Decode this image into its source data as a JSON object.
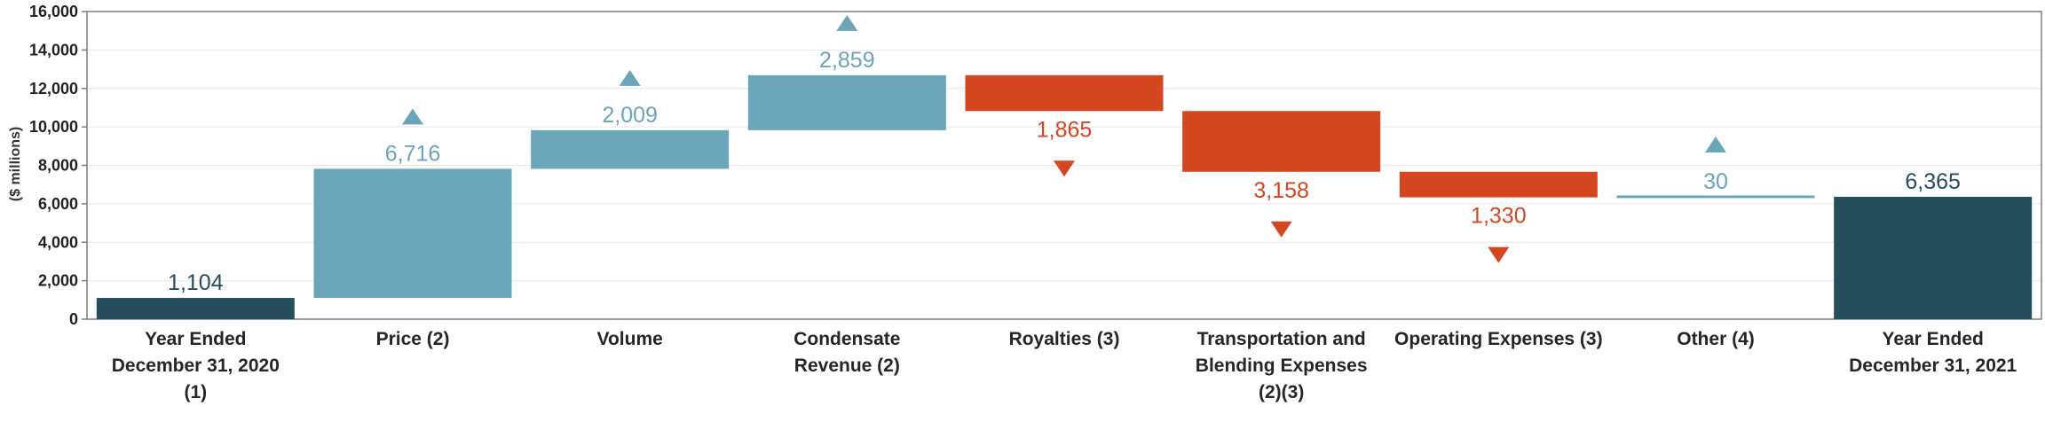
{
  "colors": {
    "total": "#264d5c",
    "increase": "#6aa5ba",
    "decrease": "#d3461f",
    "grid": "#e6e6e6",
    "axis": "#7f7f7f"
  },
  "chart_data": {
    "type": "waterfall",
    "title": "",
    "xlabel": "",
    "ylabel": "($ millions)",
    "ylim": [
      0,
      16000
    ],
    "yticks": [
      0,
      2000,
      4000,
      6000,
      8000,
      10000,
      12000,
      14000,
      16000
    ],
    "ytick_labels": [
      "0",
      "2,000",
      "4,000",
      "6,000",
      "8,000",
      "10,000",
      "12,000",
      "14,000",
      "16,000"
    ],
    "grid": true,
    "bars": [
      {
        "category_lines": [
          "Year Ended",
          "December 31, 2020",
          "(1)"
        ],
        "kind": "total",
        "value": 1104,
        "label": "1,104",
        "start": 0,
        "end": 1104
      },
      {
        "category_lines": [
          "Price (2)"
        ],
        "kind": "increase",
        "value": 6716,
        "label": "6,716",
        "start": 1104,
        "end": 7820
      },
      {
        "category_lines": [
          "Volume"
        ],
        "kind": "increase",
        "value": 2009,
        "label": "2,009",
        "start": 7820,
        "end": 9829
      },
      {
        "category_lines": [
          "Condensate",
          "Revenue (2)"
        ],
        "kind": "increase",
        "value": 2859,
        "label": "2,859",
        "start": 9829,
        "end": 12688
      },
      {
        "category_lines": [
          "Royalties (3)"
        ],
        "kind": "decrease",
        "value": -1865,
        "label": "1,865",
        "start": 12688,
        "end": 10823
      },
      {
        "category_lines": [
          "Transportation and",
          "Blending Expenses",
          "(2)(3)"
        ],
        "kind": "decrease",
        "value": -3158,
        "label": "3,158",
        "start": 10823,
        "end": 7665
      },
      {
        "category_lines": [
          "Operating Expenses (3)"
        ],
        "kind": "decrease",
        "value": -1330,
        "label": "1,330",
        "start": 7665,
        "end": 6335
      },
      {
        "category_lines": [
          "Other (4)"
        ],
        "kind": "increase",
        "value": 30,
        "label": "30",
        "start": 6335,
        "end": 6365
      },
      {
        "category_lines": [
          "Year Ended",
          "December 31, 2021"
        ],
        "kind": "total",
        "value": 6365,
        "label": "6,365",
        "start": 0,
        "end": 6365
      }
    ]
  }
}
